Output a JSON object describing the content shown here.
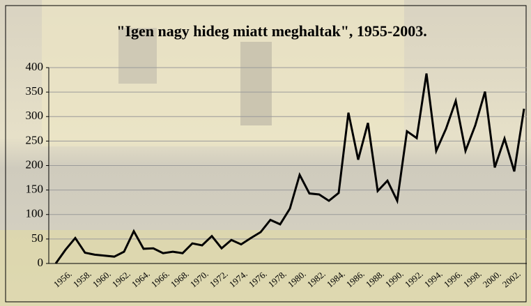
{
  "chart_data": {
    "type": "line",
    "title": "\"Igen nagy hideg miatt meghaltak\", 1955-2003.",
    "categories": [
      null,
      "1956.",
      null,
      "1958.",
      null,
      "1960.",
      null,
      "1962.",
      null,
      "1964.",
      null,
      "1966.",
      null,
      "1968.",
      null,
      "1970.",
      null,
      "1972.",
      null,
      "1974.",
      null,
      "1976.",
      null,
      "1978.",
      null,
      "1980.",
      null,
      "1982.",
      null,
      "1984.",
      null,
      "1986.",
      null,
      "1988.",
      null,
      "1990.",
      null,
      "1992.",
      null,
      "1994.",
      null,
      "1996.",
      null,
      "1998.",
      null,
      "2000.",
      null,
      "2002.",
      null
    ],
    "series": [
      {
        "color": "#000000",
        "values": [
          0,
          28,
          52,
          22,
          18,
          16,
          14,
          24,
          66,
          30,
          31,
          21,
          24,
          21,
          41,
          37,
          56,
          31,
          48,
          39,
          52,
          64,
          89,
          80,
          112,
          181,
          143,
          141,
          128,
          144,
          308,
          212,
          287,
          148,
          169,
          128,
          270,
          256,
          388,
          230,
          275,
          332,
          230,
          282,
          351,
          196,
          255,
          188,
          316
        ]
      }
    ],
    "ylim": [
      0,
      400
    ],
    "yticks": [
      0,
      50,
      100,
      150,
      200,
      250,
      300,
      350,
      400
    ],
    "grid": true
  }
}
